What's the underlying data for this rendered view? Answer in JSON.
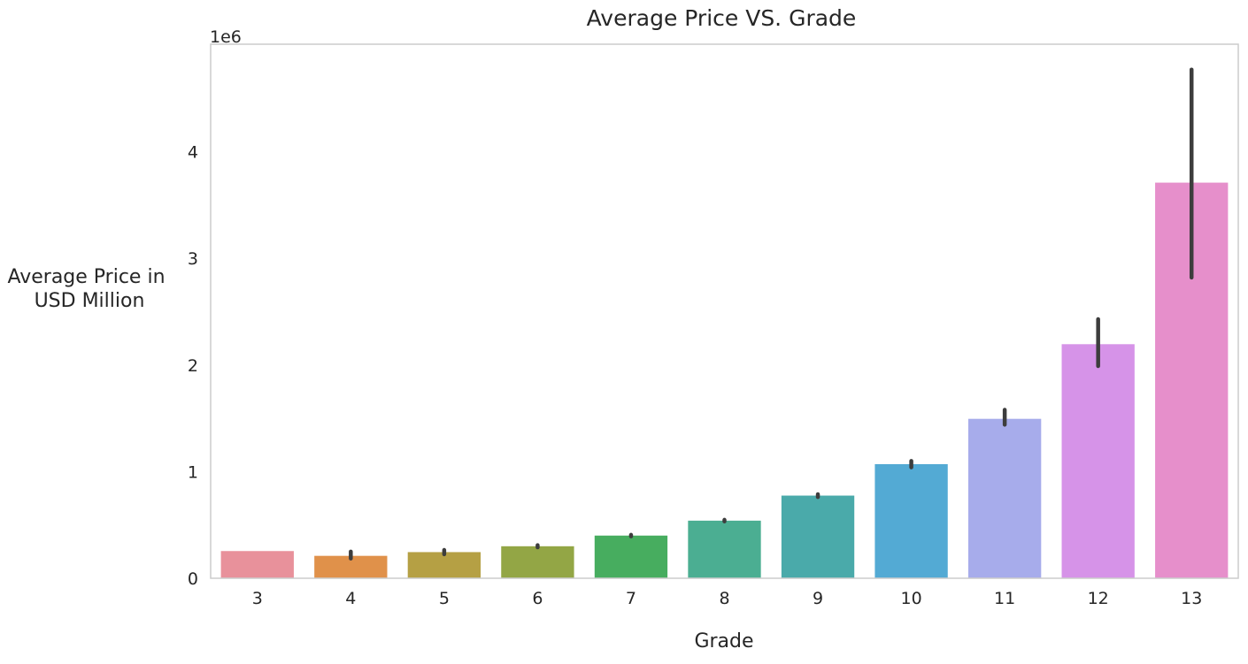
{
  "chart_data": {
    "type": "bar",
    "title": "Average Price VS. Grade",
    "xlabel": "Grade",
    "ylabel_lines": [
      "Average Price in",
      "USD Million"
    ],
    "y_offset_label": "1e6",
    "categories": [
      "3",
      "4",
      "5",
      "6",
      "7",
      "8",
      "9",
      "10",
      "11",
      "12",
      "13"
    ],
    "values": [
      255000,
      210000,
      245000,
      300000,
      400000,
      540000,
      775000,
      1070000,
      1495000,
      2195000,
      3710000
    ],
    "error_low": [
      255000,
      185000,
      225000,
      290000,
      393000,
      533000,
      762000,
      1040000,
      1440000,
      1990000,
      2820000
    ],
    "error_high": [
      255000,
      250000,
      265000,
      310000,
      407000,
      548000,
      788000,
      1100000,
      1580000,
      2430000,
      4770000
    ],
    "colors": [
      "#e8919b",
      "#e0914a",
      "#b5a044",
      "#93a645",
      "#47ad5f",
      "#4bae92",
      "#4aaaaa",
      "#53aad4",
      "#a7aceb",
      "#d693e8",
      "#e68fcb"
    ],
    "ylim": [
      0,
      5000000
    ],
    "yticks": [
      0,
      1000000,
      2000000,
      3000000,
      4000000
    ],
    "ytick_labels": [
      "0",
      "1",
      "2",
      "3",
      "4"
    ],
    "grid": false,
    "legend": "none"
  }
}
